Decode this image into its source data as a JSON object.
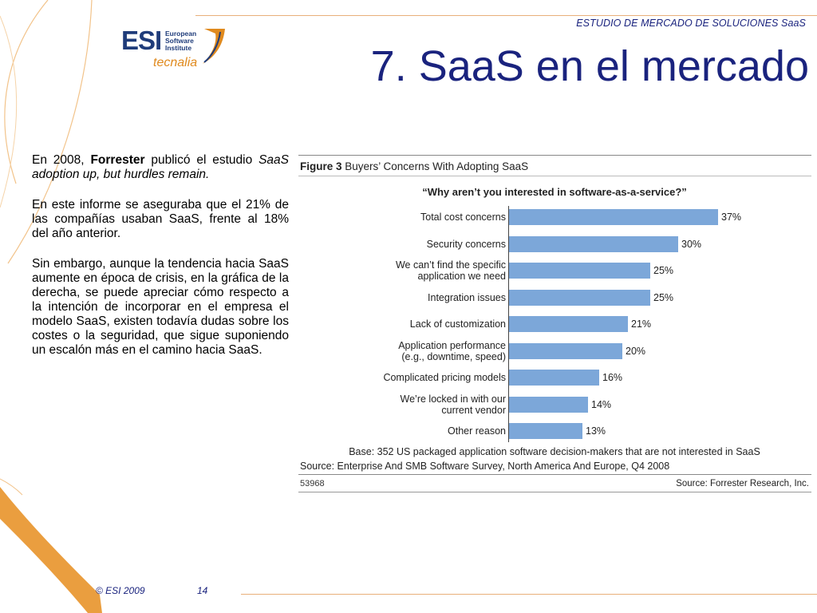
{
  "header": {
    "running_title": "ESTUDIO DE MERCADO DE SOLUCIONES SaaS",
    "slide_title": "7. SaaS en el mercado"
  },
  "logo": {
    "name": "ESI",
    "subtitle_line1": "European",
    "subtitle_line2": "Software",
    "subtitle_line3": "Institute",
    "partner": "tecnalia"
  },
  "body": {
    "p1_prefix": "En 2008,",
    "p1_bold": "Forrester",
    "p1_mid": "publicó el estudio",
    "p1_italic": "SaaS adoption up, but hurdles remain.",
    "p2": "En este informe se aseguraba que el 21% de las compañías usaban SaaS, frente al 18% del año anterior.",
    "p3": "Sin embargo, aunque la tendencia hacia SaaS aumente en época de crisis, en la gráfica de la derecha, se puede apreciar cómo respecto a la intención de incorporar en el empresa el modelo SaaS, existen todavía dudas sobre los costes o la seguridad, que sigue suponiendo un escalón más en el camino hacia SaaS."
  },
  "figure": {
    "label": "Figure 3",
    "caption": "Buyers’ Concerns With Adopting SaaS",
    "question": "“Why aren’t you interested in software-as-a-service?”",
    "base": "Base: 352 US packaged application software decision-makers that are not interested in SaaS",
    "source": "Source: Enterprise And SMB Software Survey, North America And Europe, Q4 2008",
    "number": "53968",
    "credit": "Source: Forrester Research, Inc."
  },
  "chart_data": {
    "type": "bar",
    "orientation": "horizontal",
    "categories": [
      "Total cost concerns",
      "Security concerns",
      "We can’t find the specific application we need",
      "Integration issues",
      "Lack of customization",
      "Application performance (e.g., downtime, speed)",
      "Complicated pricing models",
      "We’re locked in with our current vendor",
      "Other reason"
    ],
    "category_lines": [
      [
        "Total cost concerns"
      ],
      [
        "Security concerns"
      ],
      [
        "We can’t find the specific",
        "application we need"
      ],
      [
        "Integration issues"
      ],
      [
        "Lack of customization"
      ],
      [
        "Application performance",
        "(e.g., downtime, speed)"
      ],
      [
        "Complicated pricing models"
      ],
      [
        "We’re locked in with our",
        "current vendor"
      ],
      [
        "Other reason"
      ]
    ],
    "values": [
      37,
      30,
      25,
      25,
      21,
      20,
      16,
      14,
      13
    ],
    "value_labels": [
      "37%",
      "30%",
      "25%",
      "25%",
      "21%",
      "20%",
      "16%",
      "14%",
      "13%"
    ],
    "unit": "%",
    "xlim": [
      0,
      40
    ],
    "bar_color": "#7ca7d9",
    "grid": false,
    "legend": "none"
  },
  "footer": {
    "copyright": "© ESI 2009",
    "page": "14"
  },
  "colors": {
    "title": "#1a237e",
    "accent_orange": "#e08a1e",
    "bar": "#7ca7d9"
  }
}
